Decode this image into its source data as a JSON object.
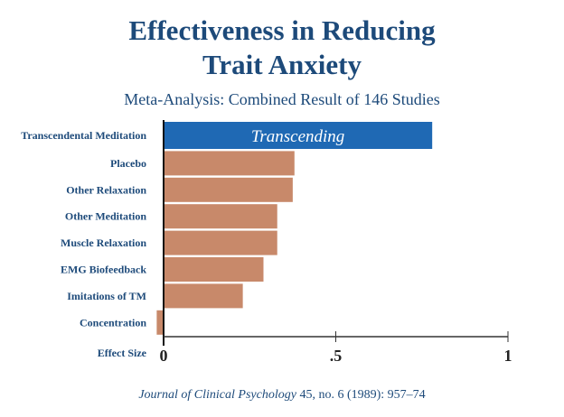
{
  "chart_data": {
    "type": "bar",
    "orientation": "horizontal",
    "title": "Effectiveness in Reducing Trait Anxiety",
    "title_lines": [
      "Effectiveness in Reducing",
      "Trait Anxiety"
    ],
    "subtitle": "Meta-Analysis: Combined Result of 146 Studies",
    "xlabel": "Effect Size",
    "ylabel": "",
    "xlim": [
      0,
      1
    ],
    "xticks": [
      {
        "value": 0,
        "label": "0"
      },
      {
        "value": 0.5,
        "label": ".5"
      },
      {
        "value": 1,
        "label": "1"
      }
    ],
    "grid": false,
    "categories": [
      "Transcendental Meditation",
      "Placebo",
      "Other Relaxation",
      "Other Meditation",
      "Muscle Relaxation",
      "EMG Biofeedback",
      "Imitations of TM",
      "Concentration"
    ],
    "values": [
      0.78,
      0.38,
      0.375,
      0.33,
      0.33,
      0.29,
      0.23,
      -0.02
    ],
    "bar_colors": [
      "#1f69b4",
      "#c8896a",
      "#c8896a",
      "#c8896a",
      "#c8896a",
      "#c8896a",
      "#c8896a",
      "#c8896a"
    ],
    "annotations": [
      {
        "category": "Transcendental Meditation",
        "text": "Transcending"
      }
    ]
  },
  "citation": {
    "journal": "Journal of Clinical Psychology",
    "details": " 45, no. 6 (1989): 957–74"
  }
}
